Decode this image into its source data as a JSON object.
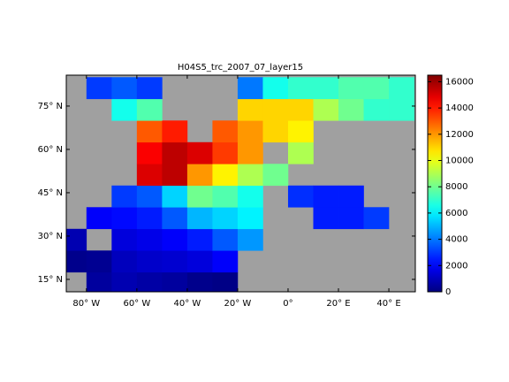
{
  "chart_data": {
    "type": "heatmap",
    "title": "H04S5_trc_2007_07_layer15",
    "colormap": "jet",
    "xbins": [
      -90,
      -80,
      -70,
      -60,
      -50,
      -40,
      -30,
      -20,
      -10,
      0,
      10,
      20,
      30,
      40,
      50
    ],
    "ybins": [
      10,
      17.5,
      25,
      32.5,
      40,
      47.5,
      55,
      62.5,
      70,
      77.5,
      85
    ],
    "values": [
      [
        null,
        500,
        800,
        600,
        500,
        200,
        100,
        null,
        null,
        null,
        null,
        null,
        null,
        null
      ],
      [
        200,
        300,
        1000,
        1200,
        1300,
        1500,
        2000,
        null,
        null,
        null,
        null,
        null,
        null,
        null
      ],
      [
        800,
        null,
        1500,
        1700,
        2000,
        2500,
        3500,
        4500,
        null,
        null,
        null,
        null,
        null,
        null
      ],
      [
        null,
        2000,
        2200,
        2500,
        3500,
        5000,
        5500,
        6000,
        null,
        null,
        2500,
        2500,
        3000,
        null
      ],
      [
        null,
        null,
        3000,
        3500,
        5500,
        8000,
        7500,
        6500,
        null,
        2800,
        2500,
        2500,
        null,
        null
      ],
      [
        null,
        null,
        null,
        15000,
        15500,
        12000,
        10500,
        9000,
        8000,
        null,
        null,
        null,
        null,
        null
      ],
      [
        null,
        null,
        null,
        14500,
        15500,
        15000,
        13500,
        12000,
        null,
        9000,
        null,
        null,
        null,
        null
      ],
      [
        null,
        null,
        null,
        13000,
        14000,
        null,
        13000,
        12000,
        11000,
        10500,
        null,
        null,
        null,
        null
      ],
      [
        null,
        null,
        6500,
        7500,
        null,
        null,
        null,
        11000,
        11000,
        11000,
        9000,
        8000,
        7000,
        7000
      ],
      [
        null,
        3000,
        3500,
        3000,
        null,
        null,
        null,
        4000,
        6500,
        7000,
        7000,
        7500,
        7500,
        7000
      ]
    ],
    "xlim": [
      -88,
      50.5
    ],
    "ylim": [
      10.7,
      85.7
    ],
    "xticks": [
      {
        "value": -80,
        "label": "80° W"
      },
      {
        "value": -60,
        "label": "60° W"
      },
      {
        "value": -40,
        "label": "40° W"
      },
      {
        "value": -20,
        "label": "20° W"
      },
      {
        "value": 0,
        "label": "0°"
      },
      {
        "value": 20,
        "label": "20° E"
      },
      {
        "value": 40,
        "label": "40° E"
      }
    ],
    "yticks": [
      {
        "value": 15,
        "label": "15° N"
      },
      {
        "value": 30,
        "label": "30° N"
      },
      {
        "value": 45,
        "label": "45° N"
      },
      {
        "value": 60,
        "label": "60° N"
      },
      {
        "value": 75,
        "label": "75° N"
      }
    ],
    "clim": [
      0,
      16500
    ],
    "cticks": [
      0,
      2000,
      4000,
      6000,
      8000,
      10000,
      12000,
      14000,
      16000
    ]
  }
}
